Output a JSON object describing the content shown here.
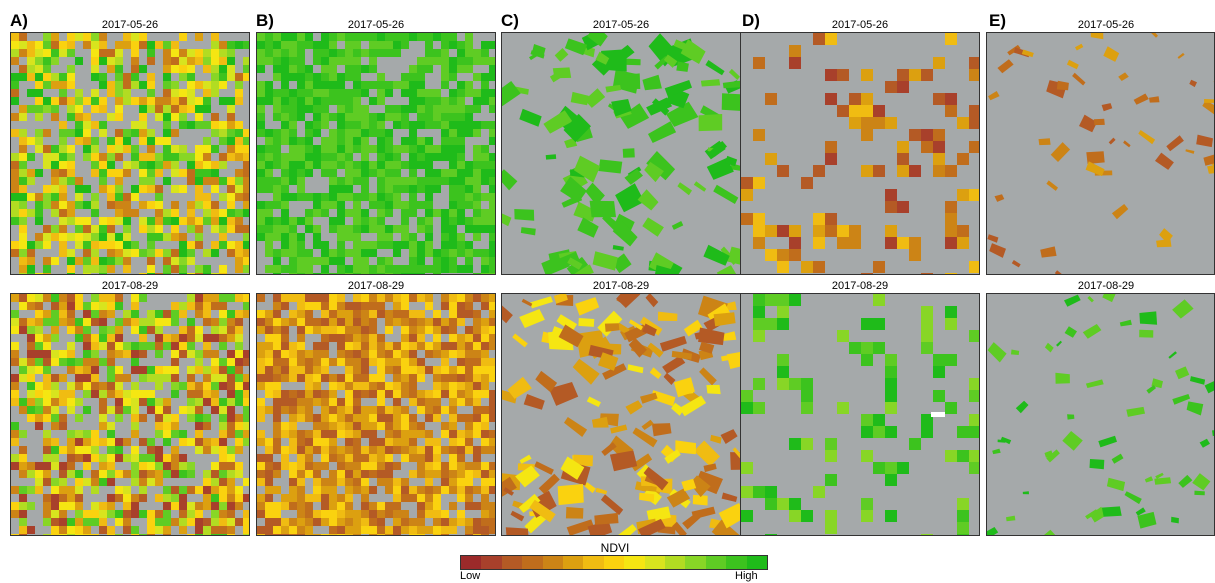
{
  "panels": [
    {
      "letter": "A)",
      "dates": [
        "2017-05-26",
        "2017-08-29"
      ]
    },
    {
      "letter": "B)",
      "dates": [
        "2017-05-26",
        "2017-08-29"
      ]
    },
    {
      "letter": "C)",
      "dates": [
        "2017-05-26",
        "2017-08-29"
      ]
    },
    {
      "letter": "D)",
      "dates": [
        "2017-05-26",
        "2017-08-29"
      ]
    },
    {
      "letter": "E)",
      "dates": [
        "2017-05-26",
        "2017-08-29"
      ]
    }
  ],
  "legend": {
    "title": "NDVI",
    "low_label": "Low",
    "high_label": "High",
    "colors": [
      "#9c2a2a",
      "#a8402b",
      "#b45a25",
      "#c06d1c",
      "#cc8416",
      "#dca010",
      "#f0bc12",
      "#fad20f",
      "#f5e612",
      "#d8e41e",
      "#b2dc22",
      "#88d626",
      "#5fcc24",
      "#3cc31e",
      "#1fbb1a"
    ]
  },
  "colors": {
    "background": "#a5a9aa",
    "white_patch": "#ffffff"
  }
}
